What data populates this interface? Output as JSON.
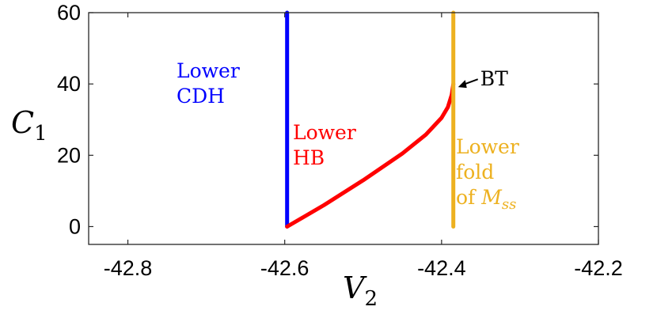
{
  "chart_data": {
    "type": "line",
    "xlabel": {
      "main": "V",
      "sub": "2"
    },
    "ylabel": {
      "main": "C",
      "sub": "1"
    },
    "xlim": [
      -42.85,
      -42.2
    ],
    "ylim": [
      -5,
      60
    ],
    "xticks": [
      -42.8,
      -42.6,
      -42.4,
      -42.2
    ],
    "xtick_labels": [
      "-42.8",
      "-42.6",
      "-42.4",
      "-42.2"
    ],
    "yticks": [
      0,
      20,
      40,
      60
    ],
    "ytick_labels": [
      "0",
      "20",
      "40",
      "60"
    ],
    "grid": false,
    "series": [
      {
        "label_lines": [
          "Lower",
          "CDH"
        ],
        "color": "#0000ff",
        "x": [
          -42.597,
          -42.597
        ],
        "y": [
          0,
          60
        ]
      },
      {
        "label_lines": [
          "Lower",
          "HB"
        ],
        "color": "#ff0000",
        "x": [
          -42.597,
          -42.55,
          -42.5,
          -42.45,
          -42.42,
          -42.4,
          -42.392,
          -42.387,
          -42.385
        ],
        "y": [
          0,
          6,
          13,
          20.5,
          25.8,
          30.5,
          33.5,
          37,
          40
        ]
      },
      {
        "label_lines": [
          "Lower",
          "fold",
          "of "
        ],
        "label_math": {
          "main": "M",
          "sub": "ss"
        },
        "color": "#edb120",
        "x": [
          -42.385,
          -42.385
        ],
        "y": [
          0,
          60
        ]
      }
    ],
    "annotations": [
      {
        "text": "BT",
        "x": -42.385,
        "y": 40
      }
    ]
  }
}
